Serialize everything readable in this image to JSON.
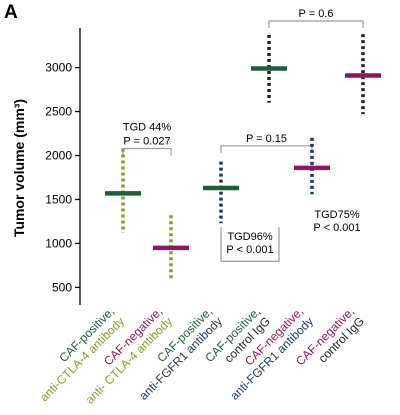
{
  "panel_label": "A",
  "colors": {
    "olive": "#8a9a2c",
    "dark_green": "#1f5c3a",
    "purple": "#8a1a5e",
    "navy": "#1a3a5c",
    "black": "#222222",
    "bracket": "#9a9a9a"
  },
  "chart_data": {
    "type": "scatter",
    "ylabel": "Tumor volume (mm³)",
    "ylim": [
      300,
      3450
    ],
    "yticks": [
      500,
      1000,
      1500,
      2000,
      2500,
      3000
    ],
    "groups": [
      {
        "label_lines": [
          {
            "text": "CAF-positive,",
            "color": "#1f5c3a"
          },
          {
            "text": "anti-CTLA-4 antibody",
            "color": "#8a9a2c"
          }
        ],
        "mean": 1570,
        "low": 1120,
        "high": 2080,
        "mean_color": "#1f5c3a",
        "range_color": "#8a9a2c"
      },
      {
        "label_lines": [
          {
            "text": "CAF-negative,",
            "color": "#8a1a5e"
          },
          {
            "text": "anti- CTLA-4 antibody",
            "color": "#8a9a2c"
          }
        ],
        "mean": 950,
        "low": 580,
        "high": 1320,
        "mean_color": "#8a1a5e",
        "range_color": "#8a9a2c"
      },
      {
        "label_lines": [
          {
            "text": "CAF-positive,",
            "color": "#1f5c3a"
          },
          {
            "text": "anti-FGFR1 antibody",
            "color": "#1a3a5c"
          }
        ],
        "mean": 1630,
        "low": 1230,
        "high": 1930,
        "mean_color": "#1f5c3a",
        "range_color": "#1a3a5c"
      },
      {
        "label_lines": [
          {
            "text": "CAF-positive,",
            "color": "#1f5c3a"
          },
          {
            "text": "control IgG",
            "color": "#222222"
          }
        ],
        "mean": 2990,
        "low": 2600,
        "high": 3370,
        "mean_color": "#1f5c3a",
        "range_color": "#222222"
      },
      {
        "label_lines": [
          {
            "text": "CAF-negative,",
            "color": "#8a1a5e"
          },
          {
            "text": "anti-FGFR1 antibody",
            "color": "#1a3a5c"
          }
        ],
        "mean": 1860,
        "low": 1560,
        "high": 2200,
        "mean_color": "#8a1a5e",
        "range_color": "#1a3a5c"
      },
      {
        "label_lines": [
          {
            "text": "CAF-negative,",
            "color": "#8a1a5e"
          },
          {
            "text": "control IgG",
            "color": "#222222"
          }
        ],
        "mean": 2910,
        "low": 2470,
        "high": 3380,
        "mean_color": "#8a1a5e",
        "range_color": "#222222"
      }
    ],
    "annotations": [
      {
        "kind": "bracket",
        "from_group": 0,
        "to_group": 1,
        "level": 2080,
        "lines": [
          "TGD 44%",
          "P = 0.027"
        ]
      },
      {
        "kind": "bracket",
        "from_group": 2,
        "to_group": 4,
        "level": 2110,
        "lines": [
          "P = 0.15"
        ]
      },
      {
        "kind": "bracket",
        "from_group": 3,
        "to_group": 5,
        "level": 3530,
        "lines": [
          "P = 0.6"
        ]
      },
      {
        "kind": "box",
        "anchor_group": 2,
        "anchor_value": 1230,
        "lines": [
          "TGD96%",
          "P < 0.001"
        ]
      },
      {
        "kind": "text",
        "anchor_group": 4,
        "anchor_value": 1560,
        "lines": [
          "TGD75%",
          "P < 0.001"
        ]
      }
    ]
  }
}
